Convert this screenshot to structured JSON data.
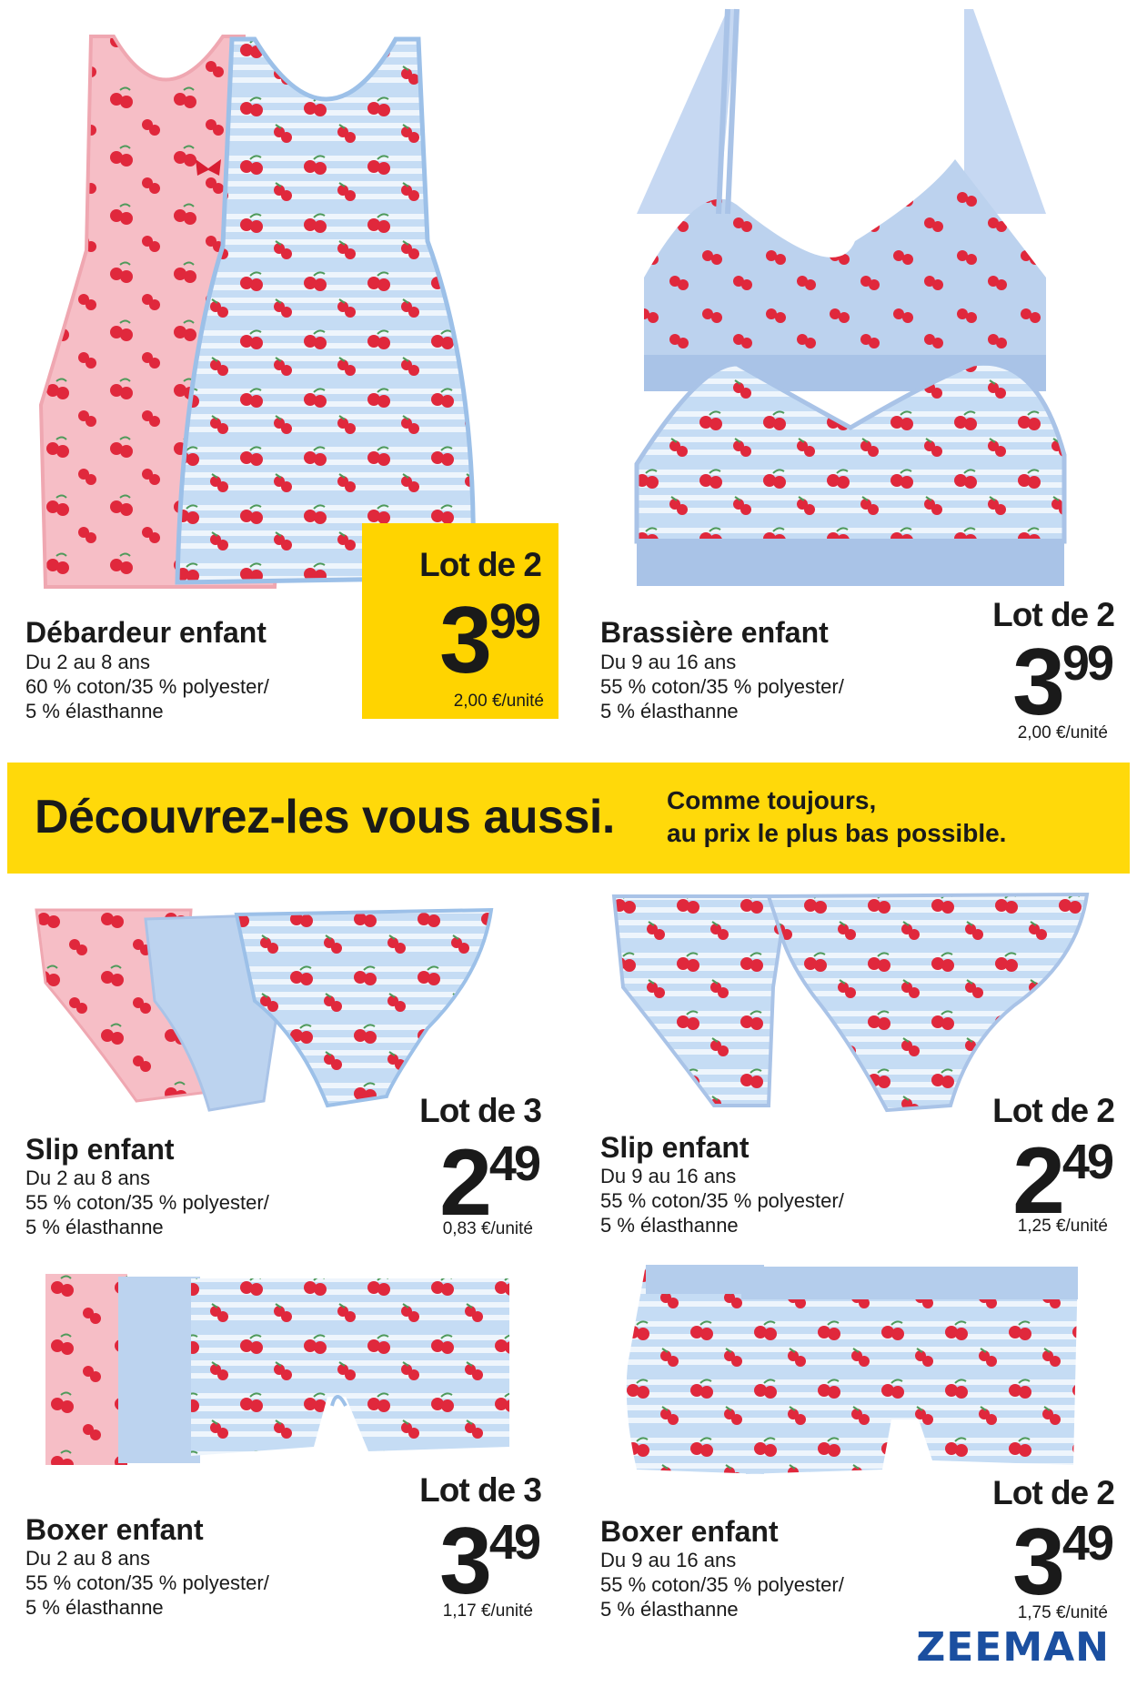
{
  "colors": {
    "yellow": "#FFD400",
    "brand_blue": "#1B4FA0",
    "pink": "#F4B8C0",
    "light_blue": "#B9D3F0",
    "cherry_red": "#E0283C"
  },
  "products": [
    {
      "id": "debardeur",
      "title": "Débardeur enfant",
      "desc": [
        "Du 2 au 8 ans",
        "60 % coton/35 % polyester/",
        "5 % élasthanne"
      ],
      "lot": "Lot de 2",
      "price_int": "3",
      "price_cents": "99",
      "unit": "2,00 €/unité"
    },
    {
      "id": "brassiere",
      "title": "Brassière enfant",
      "desc": [
        "Du 9 au 16 ans",
        "55 % coton/35 % polyester/",
        "5 % élasthanne"
      ],
      "lot": "Lot de 2",
      "price_int": "3",
      "price_cents": "99",
      "unit": "2,00 €/unité"
    },
    {
      "id": "slip-small",
      "title": "Slip enfant",
      "desc": [
        "Du 2 au 8 ans",
        "55 % coton/35 % polyester/",
        "5 % élasthanne"
      ],
      "lot": "Lot de 3",
      "price_int": "2",
      "price_cents": "49",
      "unit": "0,83 €/unité"
    },
    {
      "id": "slip-big",
      "title": "Slip enfant",
      "desc": [
        "Du 9 au 16 ans",
        "55 % coton/35 % polyester/",
        "5 % élasthanne"
      ],
      "lot": "Lot de 2",
      "price_int": "2",
      "price_cents": "49",
      "unit": "1,25 €/unité"
    },
    {
      "id": "boxer-small",
      "title": "Boxer enfant",
      "desc": [
        "Du 2 au 8 ans",
        "55 % coton/35 % polyester/",
        "5 % élasthanne"
      ],
      "lot": "Lot de 3",
      "price_int": "3",
      "price_cents": "49",
      "unit": "1,17 €/unité"
    },
    {
      "id": "boxer-big",
      "title": "Boxer enfant",
      "desc": [
        "Du 9 au 16 ans",
        "55 % coton/35 % polyester/",
        "5 % élasthanne"
      ],
      "lot": "Lot de 2",
      "price_int": "3",
      "price_cents": "49",
      "unit": "1,75 €/unité"
    }
  ],
  "banner": {
    "main": "Découvrez-les vous aussi.",
    "sub_line1": "Comme toujours,",
    "sub_line2": "au prix le plus bas possible."
  },
  "logo": "ZEEMAN",
  "images": [
    "pink-tank-top",
    "blue-tank-top",
    "blue-bra",
    "blue-bra-striped",
    "pink-brief",
    "blue-brief",
    "striped-brief",
    "striped-brief-big",
    "blue-brief-big",
    "pink-boxer",
    "blue-boxer",
    "striped-boxer",
    "striped-boxer-big"
  ]
}
